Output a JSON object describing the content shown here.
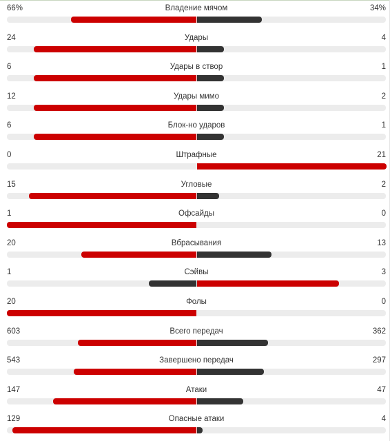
{
  "colors": {
    "leader": "#cc0000",
    "trailer": "#333333",
    "track": "#ececec"
  },
  "stats": [
    {
      "label": "Владение мячом",
      "home": "66%",
      "away": "34%",
      "home_value": 66,
      "away_value": 34
    },
    {
      "label": "Удары",
      "home": "24",
      "away": "4",
      "home_value": 24,
      "away_value": 4
    },
    {
      "label": "Удары в створ",
      "home": "6",
      "away": "1",
      "home_value": 6,
      "away_value": 1
    },
    {
      "label": "Удары мимо",
      "home": "12",
      "away": "2",
      "home_value": 12,
      "away_value": 2
    },
    {
      "label": "Блок-но ударов",
      "home": "6",
      "away": "1",
      "home_value": 6,
      "away_value": 1
    },
    {
      "label": "Штрафные",
      "home": "0",
      "away": "21",
      "home_value": 0,
      "away_value": 21
    },
    {
      "label": "Угловые",
      "home": "15",
      "away": "2",
      "home_value": 15,
      "away_value": 2
    },
    {
      "label": "Офсайды",
      "home": "1",
      "away": "0",
      "home_value": 1,
      "away_value": 0
    },
    {
      "label": "Вбрасывания",
      "home": "20",
      "away": "13",
      "home_value": 20,
      "away_value": 13
    },
    {
      "label": "Сэйвы",
      "home": "1",
      "away": "3",
      "home_value": 1,
      "away_value": 3
    },
    {
      "label": "Фолы",
      "home": "20",
      "away": "0",
      "home_value": 20,
      "away_value": 0
    },
    {
      "label": "Всего передач",
      "home": "603",
      "away": "362",
      "home_value": 603,
      "away_value": 362
    },
    {
      "label": "Завершено передач",
      "home": "543",
      "away": "297",
      "home_value": 543,
      "away_value": 297
    },
    {
      "label": "Атаки",
      "home": "147",
      "away": "47",
      "home_value": 147,
      "away_value": 47
    },
    {
      "label": "Опасные атаки",
      "home": "129",
      "away": "4",
      "home_value": 129,
      "away_value": 4
    }
  ]
}
